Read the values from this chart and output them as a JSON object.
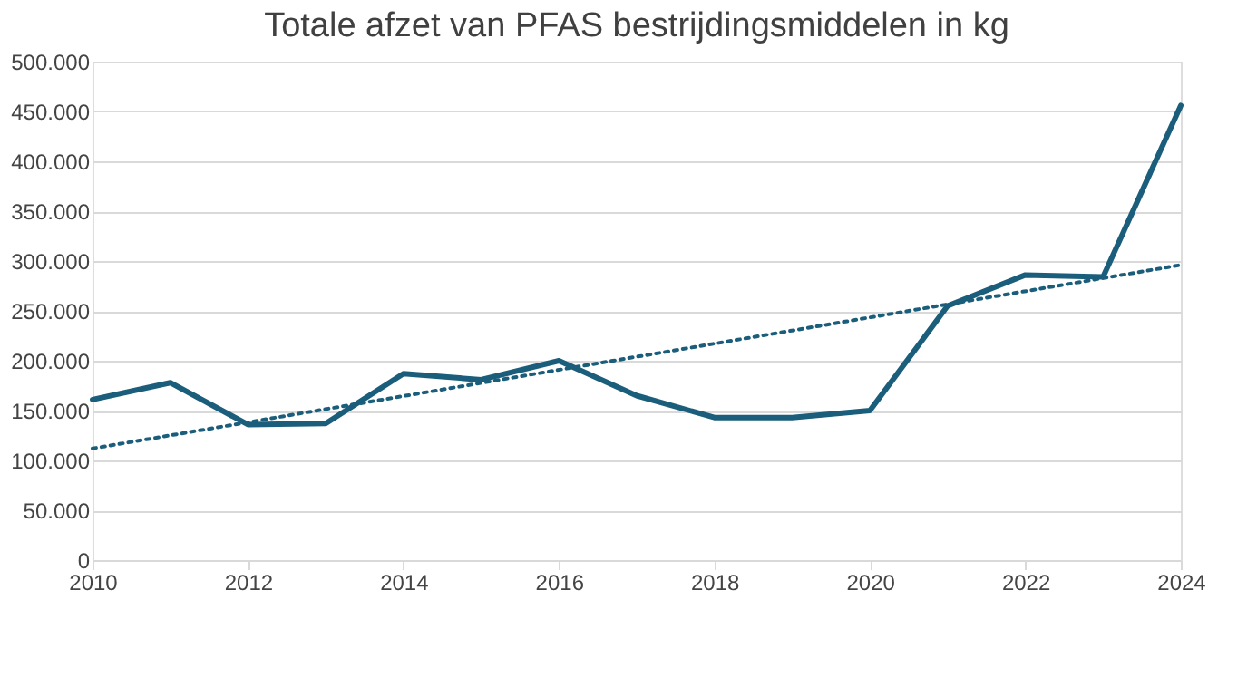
{
  "chart_data": {
    "type": "line",
    "title": "Totale afzet van PFAS bestrijdingsmiddelen in kg",
    "x": [
      2010,
      2011,
      2012,
      2013,
      2014,
      2015,
      2016,
      2017,
      2018,
      2019,
      2020,
      2021,
      2022,
      2023,
      2024
    ],
    "series": [
      {
        "color": "#1b5e7b",
        "values": [
          161000,
          178000,
          136000,
          137000,
          187000,
          181000,
          200000,
          165000,
          143000,
          143000,
          150000,
          255000,
          286000,
          284000,
          456000
        ]
      },
      {
        "type": "line",
        "line_style": "dotted",
        "color": "#1b5e7b",
        "x": [
          2010,
          2024
        ],
        "values": [
          112000,
          296000
        ]
      }
    ],
    "xlim": [
      2010,
      2024
    ],
    "xticks": [
      2010,
      2012,
      2014,
      2016,
      2018,
      2020,
      2022,
      2024
    ],
    "ylim": [
      0,
      500000
    ],
    "yticks": [
      0,
      {
        "value": 50000,
        "label": "50.000"
      },
      {
        "value": 100000,
        "label": "100.000"
      },
      {
        "value": 150000,
        "label": "150.000"
      },
      {
        "value": 200000,
        "label": "200.000"
      },
      {
        "value": 250000,
        "label": "250.000"
      },
      {
        "value": 300000,
        "label": "300.000"
      },
      {
        "value": 350000,
        "label": "350.000"
      },
      {
        "value": 400000,
        "label": "400.000"
      },
      {
        "value": 450000,
        "label": "450.000"
      },
      {
        "value": 500000,
        "label": "500.000"
      }
    ],
    "grid": "y",
    "marker": "none",
    "line_style": "solid"
  }
}
